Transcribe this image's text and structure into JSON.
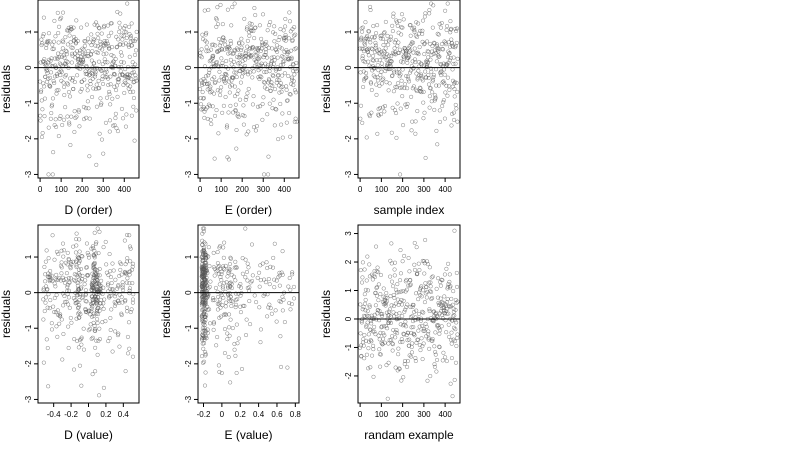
{
  "chart_data": [
    {
      "type": "scatter",
      "xlabel": "D (order)",
      "ylabel": "residuals",
      "xlim": [
        -10,
        470
      ],
      "ylim": [
        -3.1,
        1.9
      ],
      "xticks": [
        0,
        100,
        200,
        300,
        400
      ],
      "yticks": [
        -3,
        -2,
        -1,
        0,
        1
      ],
      "hline": 0,
      "kind": "order",
      "dist": "res",
      "seed": 11
    },
    {
      "type": "scatter",
      "xlabel": "E (order)",
      "ylabel": "residuals",
      "xlim": [
        -10,
        470
      ],
      "ylim": [
        -3.1,
        1.9
      ],
      "xticks": [
        0,
        100,
        200,
        300,
        400
      ],
      "yticks": [
        -3,
        -2,
        -1,
        0,
        1
      ],
      "hline": 0,
      "kind": "order",
      "dist": "res",
      "seed": 23
    },
    {
      "type": "scatter",
      "xlabel": "sample index",
      "ylabel": "residuals",
      "xlim": [
        -10,
        470
      ],
      "ylim": [
        -3.1,
        1.9
      ],
      "xticks": [
        0,
        100,
        200,
        300,
        400
      ],
      "yticks": [
        -3,
        -2,
        -1,
        0,
        1
      ],
      "hline": 0,
      "kind": "order",
      "dist": "res",
      "seed": 37
    },
    {
      "type": "scatter",
      "xlabel": "D (value)",
      "ylabel": "residuals",
      "xlim": [
        -0.58,
        0.58
      ],
      "ylim": [
        -3.1,
        1.9
      ],
      "xticks": [
        -0.4,
        -0.2,
        0.0,
        0.2,
        0.4
      ],
      "yticks": [
        -3,
        -2,
        -1,
        0,
        1
      ],
      "hline": 0,
      "kind": "dvalue",
      "dist": "res",
      "seed": 41
    },
    {
      "type": "scatter",
      "xlabel": "E (value)",
      "ylabel": "residuals",
      "xlim": [
        -0.26,
        0.84
      ],
      "ylim": [
        -3.1,
        1.9
      ],
      "xticks": [
        -0.2,
        0.0,
        0.2,
        0.4,
        0.6,
        0.8
      ],
      "yticks": [
        -3,
        -2,
        -1,
        0,
        1
      ],
      "hline": 0,
      "kind": "evalue",
      "dist": "res",
      "seed": 53
    },
    {
      "type": "scatter",
      "xlabel": "randam example",
      "ylabel": "residuals",
      "xlim": [
        -10,
        470
      ],
      "ylim": [
        -2.95,
        3.3
      ],
      "xticks": [
        0,
        100,
        200,
        300,
        400
      ],
      "yticks": [
        -2,
        -1,
        0,
        1,
        2,
        3
      ],
      "hline": 0,
      "kind": "order",
      "dist": "normal",
      "seed": 67
    }
  ]
}
